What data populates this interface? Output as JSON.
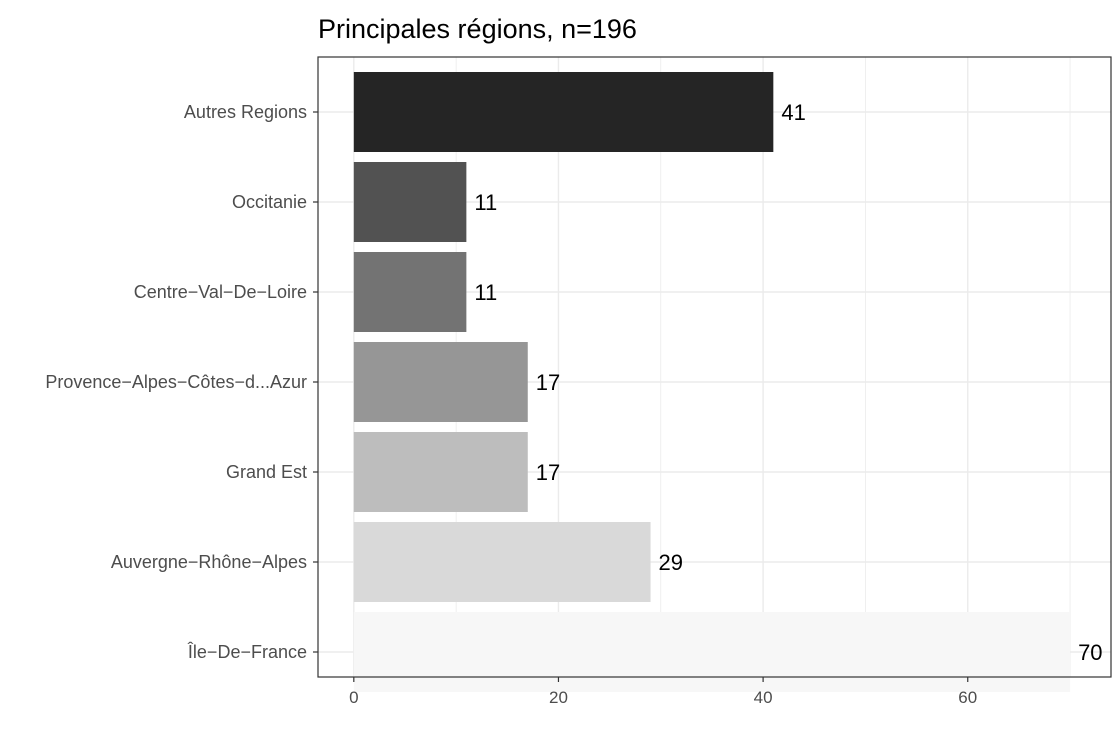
{
  "chart_data": {
    "type": "bar",
    "orientation": "horizontal",
    "title": "Principales régions, n=196",
    "xlabel": "",
    "ylabel": "",
    "categories": [
      "Autres Regions",
      "Occitanie",
      "Centre−Val−De−Loire",
      "Provence−Alpes−Côtes−d...Azur",
      "Grand Est",
      "Auvergne−Rhône−Alpes",
      "Île−De−France"
    ],
    "values": [
      41,
      11,
      11,
      17,
      17,
      29,
      70
    ],
    "colors": [
      "#252525",
      "#525252",
      "#737373",
      "#969696",
      "#bdbdbd",
      "#d9d9d9",
      "#f7f7f7"
    ],
    "x_ticks": [
      0,
      20,
      40,
      60
    ],
    "xlim": [
      -3.5,
      74
    ],
    "grid": true,
    "legend": "none"
  }
}
